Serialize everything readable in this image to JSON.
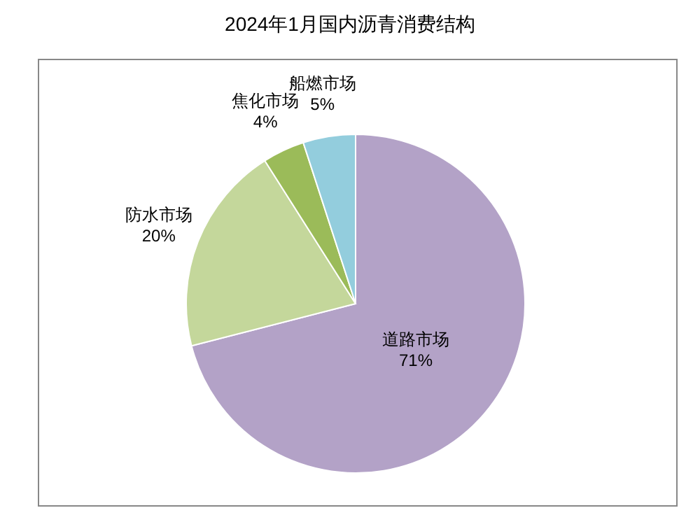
{
  "chart_data": {
    "type": "pie",
    "title": "2024年1月国内沥青消费结构",
    "categories": [
      "道路市场",
      "防水市场",
      "焦化市场",
      "船燃市场"
    ],
    "values": [
      71,
      20,
      4,
      5
    ],
    "colors": [
      "#b3a2c7",
      "#c4d79b",
      "#9bbb59",
      "#93cddd"
    ],
    "value_labels": [
      "71%",
      "20%",
      "4%",
      "5%"
    ]
  }
}
